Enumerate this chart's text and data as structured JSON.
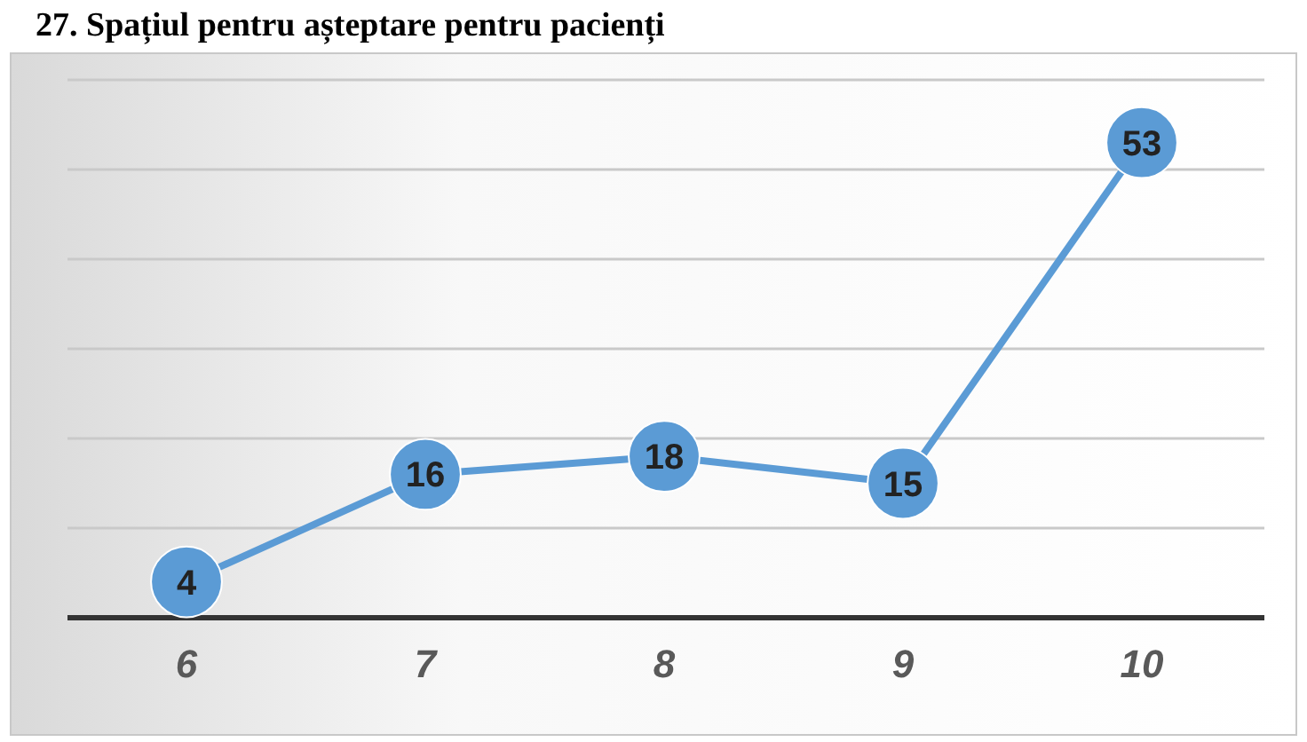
{
  "chart_data": {
    "type": "line",
    "title": "27. Spațiul pentru așteptare pentru pacienți",
    "categories": [
      "6",
      "7",
      "8",
      "9",
      "10"
    ],
    "series": [
      {
        "color": "#5b9bd5",
        "values": [
          4,
          16,
          18,
          15,
          53
        ]
      }
    ],
    "ylim": [
      0,
      60
    ],
    "yticks": [
      {
        "value": 0,
        "label": null
      },
      {
        "value": 10,
        "label": null
      },
      {
        "value": 20,
        "label": null
      },
      {
        "value": 30,
        "label": null
      },
      {
        "value": 40,
        "label": null
      },
      {
        "value": 50,
        "label": null
      },
      {
        "value": 60,
        "label": null
      }
    ],
    "grid": "y",
    "tick_labels": "x",
    "data_labels": true,
    "marker": "circle",
    "line_style": "solid"
  }
}
